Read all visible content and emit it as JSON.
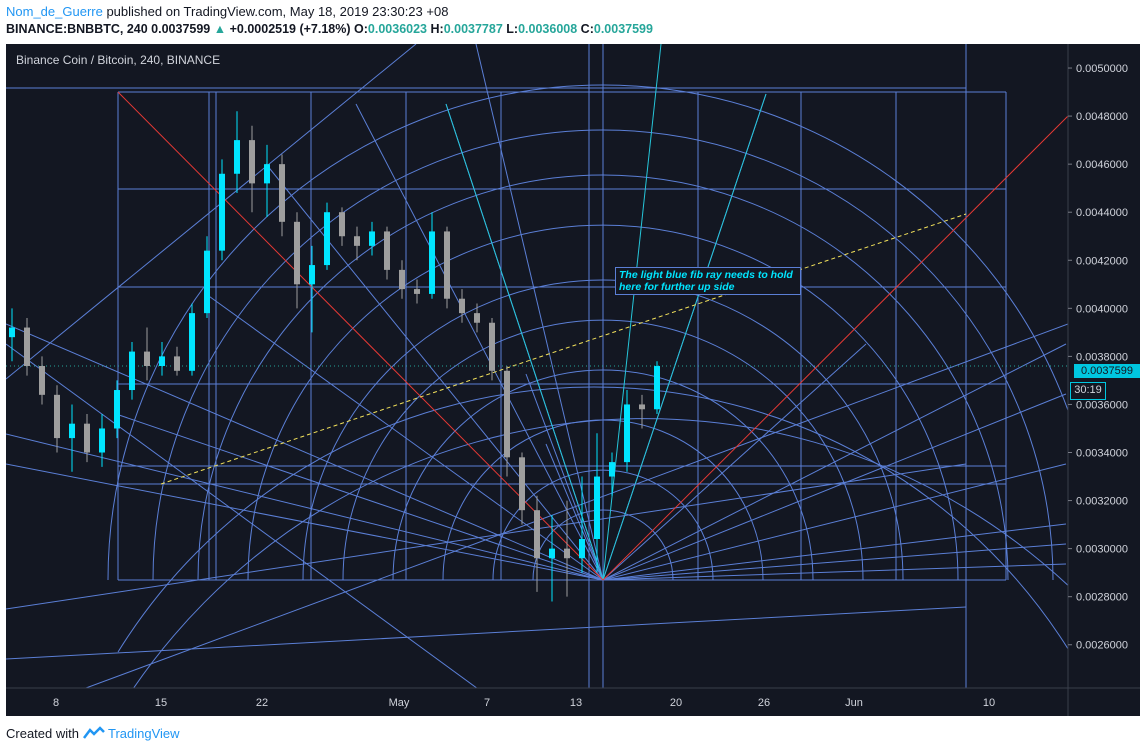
{
  "header": {
    "username": "Nom_de_Guerre",
    "published_text": "published on TradingView.com, May 18, 2019 23:30:23 +08",
    "symbol": "BINANCE:BNBBTC, 240",
    "last": "0.0037599",
    "change": "+0.0002519 (+7.18%)",
    "o_label": "O:",
    "o_value": "0.0036023",
    "h_label": "H:",
    "h_value": "0.0037787",
    "l_label": "L:",
    "l_value": "0.0036008",
    "c_label": "C:",
    "c_value": "0.0037599"
  },
  "legend_title": "Binance Coin / Bitcoin, 240, BINANCE",
  "annotation": "The light blue fib ray needs to hold here for further up side",
  "price_tag": "0.0037599",
  "countdown": "30:19",
  "footer": {
    "created_with": "Created with",
    "brand": "TradingView"
  },
  "colors": {
    "background": "#131722",
    "grid_lines": "#5b7fd6",
    "up_candle": "#00e5ff",
    "down_candle": "#9e9e9e",
    "fan_cyan": "#26c6da",
    "diagonal_red": "#e53935",
    "trend_dashed": "#f2e15b",
    "last_price": "#26a69a"
  },
  "chart_data": {
    "type": "candlestick",
    "title": "Binance Coin / Bitcoin, 240, BINANCE",
    "x_ticks": [
      "8",
      "15",
      "22",
      "May",
      "7",
      "13",
      "20",
      "26",
      "Jun",
      "10"
    ],
    "y_ticks": [
      "0.0050000",
      "0.0048000",
      "0.0046000",
      "0.0044000",
      "0.0042000",
      "0.0040000",
      "0.0038000",
      "0.0036000",
      "0.0034000",
      "0.0032000",
      "0.0030000",
      "0.0028000",
      "0.0026000"
    ],
    "ylim": [
      0.00242,
      0.0051
    ],
    "last_price": 0.0037599,
    "candles": [
      {
        "x": "Apr 5",
        "o": 0.00388,
        "h": 0.004,
        "l": 0.00378,
        "c": 0.00392
      },
      {
        "x": "Apr 6",
        "o": 0.00392,
        "h": 0.00396,
        "l": 0.00372,
        "c": 0.00376
      },
      {
        "x": "Apr 7",
        "o": 0.00376,
        "h": 0.0038,
        "l": 0.0036,
        "c": 0.00364
      },
      {
        "x": "Apr 8",
        "o": 0.00364,
        "h": 0.00368,
        "l": 0.0034,
        "c": 0.00346
      },
      {
        "x": "Apr 9",
        "o": 0.00346,
        "h": 0.0036,
        "l": 0.00332,
        "c": 0.00352
      },
      {
        "x": "Apr 10",
        "o": 0.00352,
        "h": 0.00356,
        "l": 0.00336,
        "c": 0.0034
      },
      {
        "x": "Apr 11",
        "o": 0.0034,
        "h": 0.00356,
        "l": 0.00334,
        "c": 0.0035
      },
      {
        "x": "Apr 12",
        "o": 0.0035,
        "h": 0.0037,
        "l": 0.00346,
        "c": 0.00366
      },
      {
        "x": "Apr 13",
        "o": 0.00366,
        "h": 0.00386,
        "l": 0.00362,
        "c": 0.00382
      },
      {
        "x": "Apr 14",
        "o": 0.00382,
        "h": 0.00392,
        "l": 0.0037,
        "c": 0.00376
      },
      {
        "x": "Apr 15",
        "o": 0.00376,
        "h": 0.00386,
        "l": 0.00372,
        "c": 0.0038
      },
      {
        "x": "Apr 16",
        "o": 0.0038,
        "h": 0.00384,
        "l": 0.00372,
        "c": 0.00374
      },
      {
        "x": "Apr 17",
        "o": 0.00374,
        "h": 0.00402,
        "l": 0.00372,
        "c": 0.00398
      },
      {
        "x": "Apr 18",
        "o": 0.00398,
        "h": 0.0043,
        "l": 0.00396,
        "c": 0.00424
      },
      {
        "x": "Apr 19",
        "o": 0.00424,
        "h": 0.00462,
        "l": 0.0042,
        "c": 0.00456
      },
      {
        "x": "Apr 20",
        "o": 0.00456,
        "h": 0.00482,
        "l": 0.00448,
        "c": 0.0047
      },
      {
        "x": "Apr 21",
        "o": 0.0047,
        "h": 0.00476,
        "l": 0.0044,
        "c": 0.00452
      },
      {
        "x": "Apr 22",
        "o": 0.00452,
        "h": 0.00468,
        "l": 0.00438,
        "c": 0.0046
      },
      {
        "x": "Apr 23",
        "o": 0.0046,
        "h": 0.00464,
        "l": 0.0043,
        "c": 0.00436
      },
      {
        "x": "Apr 24",
        "o": 0.00436,
        "h": 0.0044,
        "l": 0.004,
        "c": 0.0041
      },
      {
        "x": "Apr 25",
        "o": 0.0041,
        "h": 0.00426,
        "l": 0.0039,
        "c": 0.00418
      },
      {
        "x": "Apr 26",
        "o": 0.00418,
        "h": 0.00444,
        "l": 0.00416,
        "c": 0.0044
      },
      {
        "x": "Apr 27",
        "o": 0.0044,
        "h": 0.00442,
        "l": 0.00426,
        "c": 0.0043
      },
      {
        "x": "Apr 28",
        "o": 0.0043,
        "h": 0.00434,
        "l": 0.0042,
        "c": 0.00426
      },
      {
        "x": "Apr 29",
        "o": 0.00426,
        "h": 0.00436,
        "l": 0.00422,
        "c": 0.00432
      },
      {
        "x": "Apr 30",
        "o": 0.00432,
        "h": 0.00434,
        "l": 0.00412,
        "c": 0.00416
      },
      {
        "x": "May 1",
        "o": 0.00416,
        "h": 0.0042,
        "l": 0.00404,
        "c": 0.00408
      },
      {
        "x": "May 2",
        "o": 0.00408,
        "h": 0.00412,
        "l": 0.00402,
        "c": 0.00406
      },
      {
        "x": "May 3",
        "o": 0.00406,
        "h": 0.0044,
        "l": 0.00404,
        "c": 0.00432
      },
      {
        "x": "May 4",
        "o": 0.00432,
        "h": 0.00434,
        "l": 0.004,
        "c": 0.00404
      },
      {
        "x": "May 5",
        "o": 0.00404,
        "h": 0.00408,
        "l": 0.00394,
        "c": 0.00398
      },
      {
        "x": "May 6",
        "o": 0.00398,
        "h": 0.00402,
        "l": 0.0039,
        "c": 0.00394
      },
      {
        "x": "May 7",
        "o": 0.00394,
        "h": 0.00396,
        "l": 0.0037,
        "c": 0.00374
      },
      {
        "x": "May 8",
        "o": 0.00374,
        "h": 0.00376,
        "l": 0.0033,
        "c": 0.00338
      },
      {
        "x": "May 9",
        "o": 0.00338,
        "h": 0.0034,
        "l": 0.0031,
        "c": 0.00316
      },
      {
        "x": "May 10",
        "o": 0.00316,
        "h": 0.00322,
        "l": 0.00282,
        "c": 0.00296
      },
      {
        "x": "May 11",
        "o": 0.00296,
        "h": 0.00314,
        "l": 0.00278,
        "c": 0.003
      },
      {
        "x": "May 12",
        "o": 0.003,
        "h": 0.0032,
        "l": 0.0028,
        "c": 0.00296
      },
      {
        "x": "May 13",
        "o": 0.00296,
        "h": 0.0033,
        "l": 0.0029,
        "c": 0.00304
      },
      {
        "x": "May 14",
        "o": 0.00304,
        "h": 0.00348,
        "l": 0.0029,
        "c": 0.0033
      },
      {
        "x": "May 15",
        "o": 0.0033,
        "h": 0.0034,
        "l": 0.00322,
        "c": 0.00336
      },
      {
        "x": "May 16",
        "o": 0.00336,
        "h": 0.00366,
        "l": 0.00332,
        "c": 0.0036
      },
      {
        "x": "May 17",
        "o": 0.0036,
        "h": 0.00364,
        "l": 0.0035,
        "c": 0.00358
      },
      {
        "x": "May 18",
        "o": 0.00358,
        "h": 0.00378,
        "l": 0.00356,
        "c": 0.0037599
      }
    ]
  }
}
